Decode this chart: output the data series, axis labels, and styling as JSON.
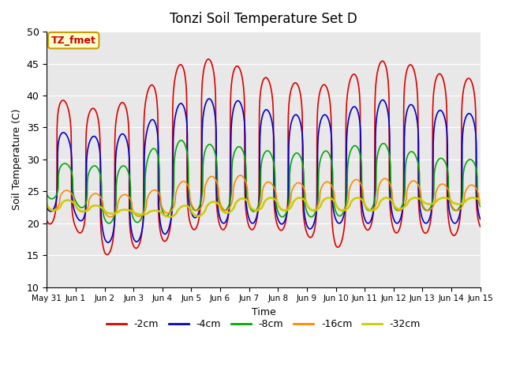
{
  "title": "Tonzi Soil Temperature Set D",
  "xlabel": "Time",
  "ylabel": "Soil Temperature (C)",
  "ylim": [
    10,
    50
  ],
  "annotation": "TZ_fmet",
  "annotation_color": "#cc0000",
  "annotation_bg": "#ffffcc",
  "annotation_border": "#cc9900",
  "background_color": "#e8e8e8",
  "fig_color": "#ffffff",
  "grid_color": "#ffffff",
  "legend_entries": [
    "-2cm",
    "-4cm",
    "-8cm",
    "-16cm",
    "-32cm"
  ],
  "line_colors": [
    "#dd0000",
    "#0000cc",
    "#00aa00",
    "#ff8800",
    "#cccc00"
  ],
  "line_widths": [
    1.2,
    1.2,
    1.2,
    1.2,
    1.8
  ],
  "xtick_labels": [
    "May 31",
    "Jun 1",
    "Jun 2",
    "Jun 3",
    "Jun 4",
    "Jun 5",
    "Jun 6",
    "Jun 7",
    "Jun 8",
    "Jun 9",
    "Jun 10",
    "Jun 11",
    "Jun 12",
    "Jun 13",
    "Jun 14",
    "Jun 15"
  ],
  "xtick_positions": [
    0,
    1,
    2,
    3,
    4,
    5,
    6,
    7,
    8,
    9,
    10,
    11,
    12,
    13,
    14,
    15
  ],
  "ytick_positions": [
    10,
    15,
    20,
    25,
    30,
    35,
    40,
    45,
    50
  ],
  "samples_per_day": 144
}
